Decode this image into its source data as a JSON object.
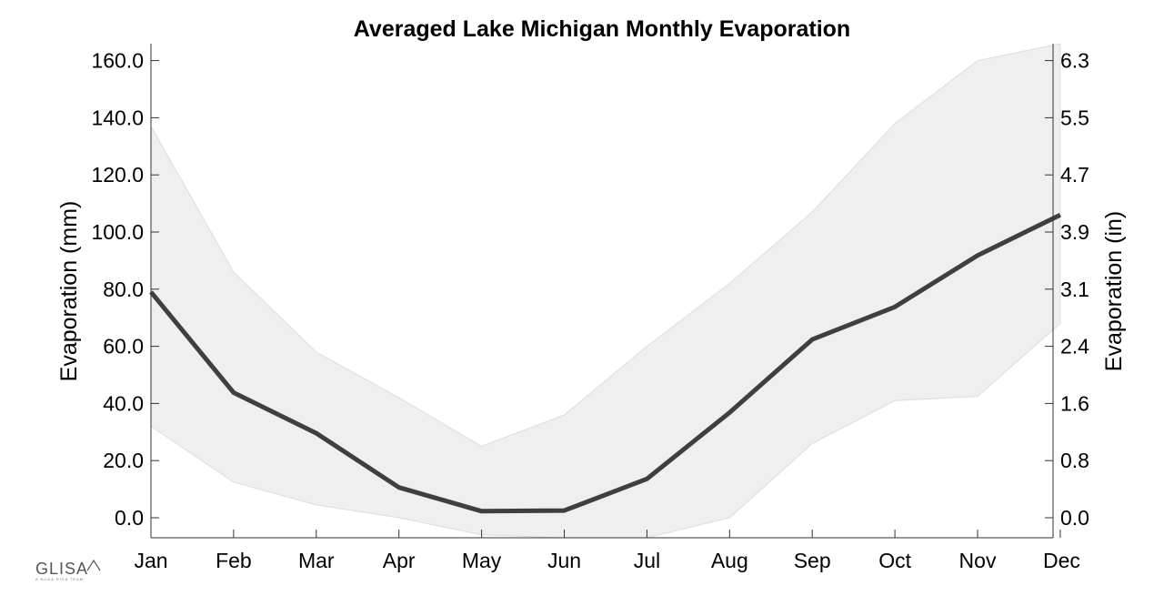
{
  "chart_data": {
    "type": "line",
    "title": "Averaged Lake Michigan Monthly Evaporation",
    "xlabel": "",
    "ylabel": "Evaporation (mm)",
    "ylabel_right": "Evaporation (in)",
    "categories": [
      "Jan",
      "Feb",
      "Mar",
      "Apr",
      "May",
      "Jun",
      "Jul",
      "Aug",
      "Sep",
      "Oct",
      "Nov",
      "Dec"
    ],
    "series": [
      {
        "values": [
          79.0,
          43.8,
          29.6,
          10.6,
          2.3,
          2.5,
          13.6,
          36.8,
          62.4,
          73.8,
          91.8,
          106.0
        ]
      }
    ],
    "band": {
      "upper": [
        137.0,
        86.0,
        58.0,
        42.0,
        25.0,
        36.0,
        60.0,
        82.0,
        107.0,
        138.0,
        160.0,
        166.0
      ],
      "lower": [
        32.0,
        12.5,
        4.5,
        0.0,
        -6.0,
        -8.0,
        -7.0,
        0.0,
        26.0,
        41.0,
        42.5,
        68.0
      ]
    },
    "ylim": [
      -7,
      166
    ],
    "yticks": [
      "0.0",
      "20.0",
      "40.0",
      "60.0",
      "80.0",
      "100.0",
      "120.0",
      "140.0",
      "160.0"
    ],
    "yticks_right": [
      "0.0",
      "0.8",
      "1.6",
      "2.4",
      "3.1",
      "3.9",
      "4.7",
      "5.5",
      "6.3"
    ],
    "grid": false,
    "colors": {
      "line": "#3f3f3f",
      "band": "#efefef",
      "band_edge": "#dddddd",
      "axis": "#333333"
    }
  },
  "logo": {
    "text": "GLISA",
    "subtext": "A NOAA RISA TEAM"
  }
}
